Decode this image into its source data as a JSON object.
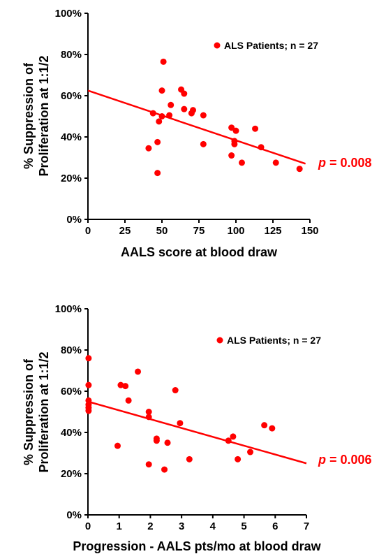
{
  "colors": {
    "series": "#ff0000",
    "axis": "#000000",
    "text": "#000000"
  },
  "chart_data": [
    {
      "type": "scatter",
      "title": "",
      "xlabel": "AALS score at blood draw",
      "ylabel_lines": [
        "% Suppression of",
        "Proliferation at 1:1/2"
      ],
      "xlim": [
        0,
        150
      ],
      "ylim": [
        0,
        100
      ],
      "x_ticks": [
        "0",
        "25",
        "50",
        "75",
        "100",
        "125",
        "150"
      ],
      "y_ticks": [
        "0%",
        "20%",
        "40%",
        "60%",
        "80%",
        "100%"
      ],
      "legend": {
        "label": "ALS Patients; n = 27",
        "position": "top-right"
      },
      "p_value": {
        "prefix": "p",
        "text": " = 0.008"
      },
      "trendline": {
        "x": [
          0,
          147
        ],
        "y": [
          62.5,
          27
        ]
      },
      "series": [
        {
          "points": [
            {
              "x": 41,
              "y": 34.5
            },
            {
              "x": 44,
              "y": 51.5
            },
            {
              "x": 47,
              "y": 37.5
            },
            {
              "x": 47,
              "y": 22.5
            },
            {
              "x": 48,
              "y": 47.5
            },
            {
              "x": 50,
              "y": 62.5
            },
            {
              "x": 50,
              "y": 50
            },
            {
              "x": 51,
              "y": 76.5
            },
            {
              "x": 55,
              "y": 50.5
            },
            {
              "x": 56,
              "y": 55.5
            },
            {
              "x": 63,
              "y": 63
            },
            {
              "x": 65,
              "y": 53.5
            },
            {
              "x": 65,
              "y": 61
            },
            {
              "x": 70,
              "y": 51.5
            },
            {
              "x": 71,
              "y": 53
            },
            {
              "x": 78,
              "y": 50.5
            },
            {
              "x": 78,
              "y": 36.5
            },
            {
              "x": 97,
              "y": 44.5
            },
            {
              "x": 97,
              "y": 31
            },
            {
              "x": 99,
              "y": 38
            },
            {
              "x": 99,
              "y": 36.5
            },
            {
              "x": 100,
              "y": 43
            },
            {
              "x": 104,
              "y": 27.5
            },
            {
              "x": 113,
              "y": 44
            },
            {
              "x": 117,
              "y": 35
            },
            {
              "x": 127,
              "y": 27.5
            },
            {
              "x": 143,
              "y": 24.5
            }
          ]
        }
      ]
    },
    {
      "type": "scatter",
      "title": "",
      "xlabel": "Progression - AALS pts/mo at blood draw",
      "ylabel_lines": [
        "% Suppression of",
        "Proliferation at 1:1/2"
      ],
      "xlim": [
        0,
        7
      ],
      "ylim": [
        0,
        100
      ],
      "x_ticks": [
        "0",
        "1",
        "2",
        "3",
        "4",
        "5",
        "6",
        "7"
      ],
      "y_ticks": [
        "0%",
        "20%",
        "40%",
        "60%",
        "80%",
        "100%"
      ],
      "legend": {
        "label": "ALS Patients; n = 27",
        "position": "top-right"
      },
      "p_value": {
        "prefix": "p",
        "text": " = 0.006"
      },
      "trendline": {
        "x": [
          0,
          7
        ],
        "y": [
          55,
          25
        ]
      },
      "series": [
        {
          "points": [
            {
              "x": 0.02,
              "y": 76
            },
            {
              "x": 0.02,
              "y": 63
            },
            {
              "x": 0.02,
              "y": 55.5
            },
            {
              "x": 0.02,
              "y": 53.5
            },
            {
              "x": 0.02,
              "y": 52
            },
            {
              "x": 0.02,
              "y": 50.5
            },
            {
              "x": 0.95,
              "y": 33.5
            },
            {
              "x": 1.05,
              "y": 63
            },
            {
              "x": 1.2,
              "y": 62.5
            },
            {
              "x": 1.3,
              "y": 55.5
            },
            {
              "x": 1.6,
              "y": 69.5
            },
            {
              "x": 1.95,
              "y": 50
            },
            {
              "x": 1.95,
              "y": 47.5
            },
            {
              "x": 1.95,
              "y": 24.5
            },
            {
              "x": 2.2,
              "y": 37
            },
            {
              "x": 2.2,
              "y": 36
            },
            {
              "x": 2.45,
              "y": 22
            },
            {
              "x": 2.55,
              "y": 35
            },
            {
              "x": 2.8,
              "y": 60.5
            },
            {
              "x": 2.95,
              "y": 44.5
            },
            {
              "x": 3.25,
              "y": 27
            },
            {
              "x": 4.5,
              "y": 36
            },
            {
              "x": 4.65,
              "y": 38
            },
            {
              "x": 4.8,
              "y": 27
            },
            {
              "x": 5.2,
              "y": 30.5
            },
            {
              "x": 5.65,
              "y": 43.5
            },
            {
              "x": 5.9,
              "y": 42
            }
          ]
        }
      ]
    }
  ]
}
